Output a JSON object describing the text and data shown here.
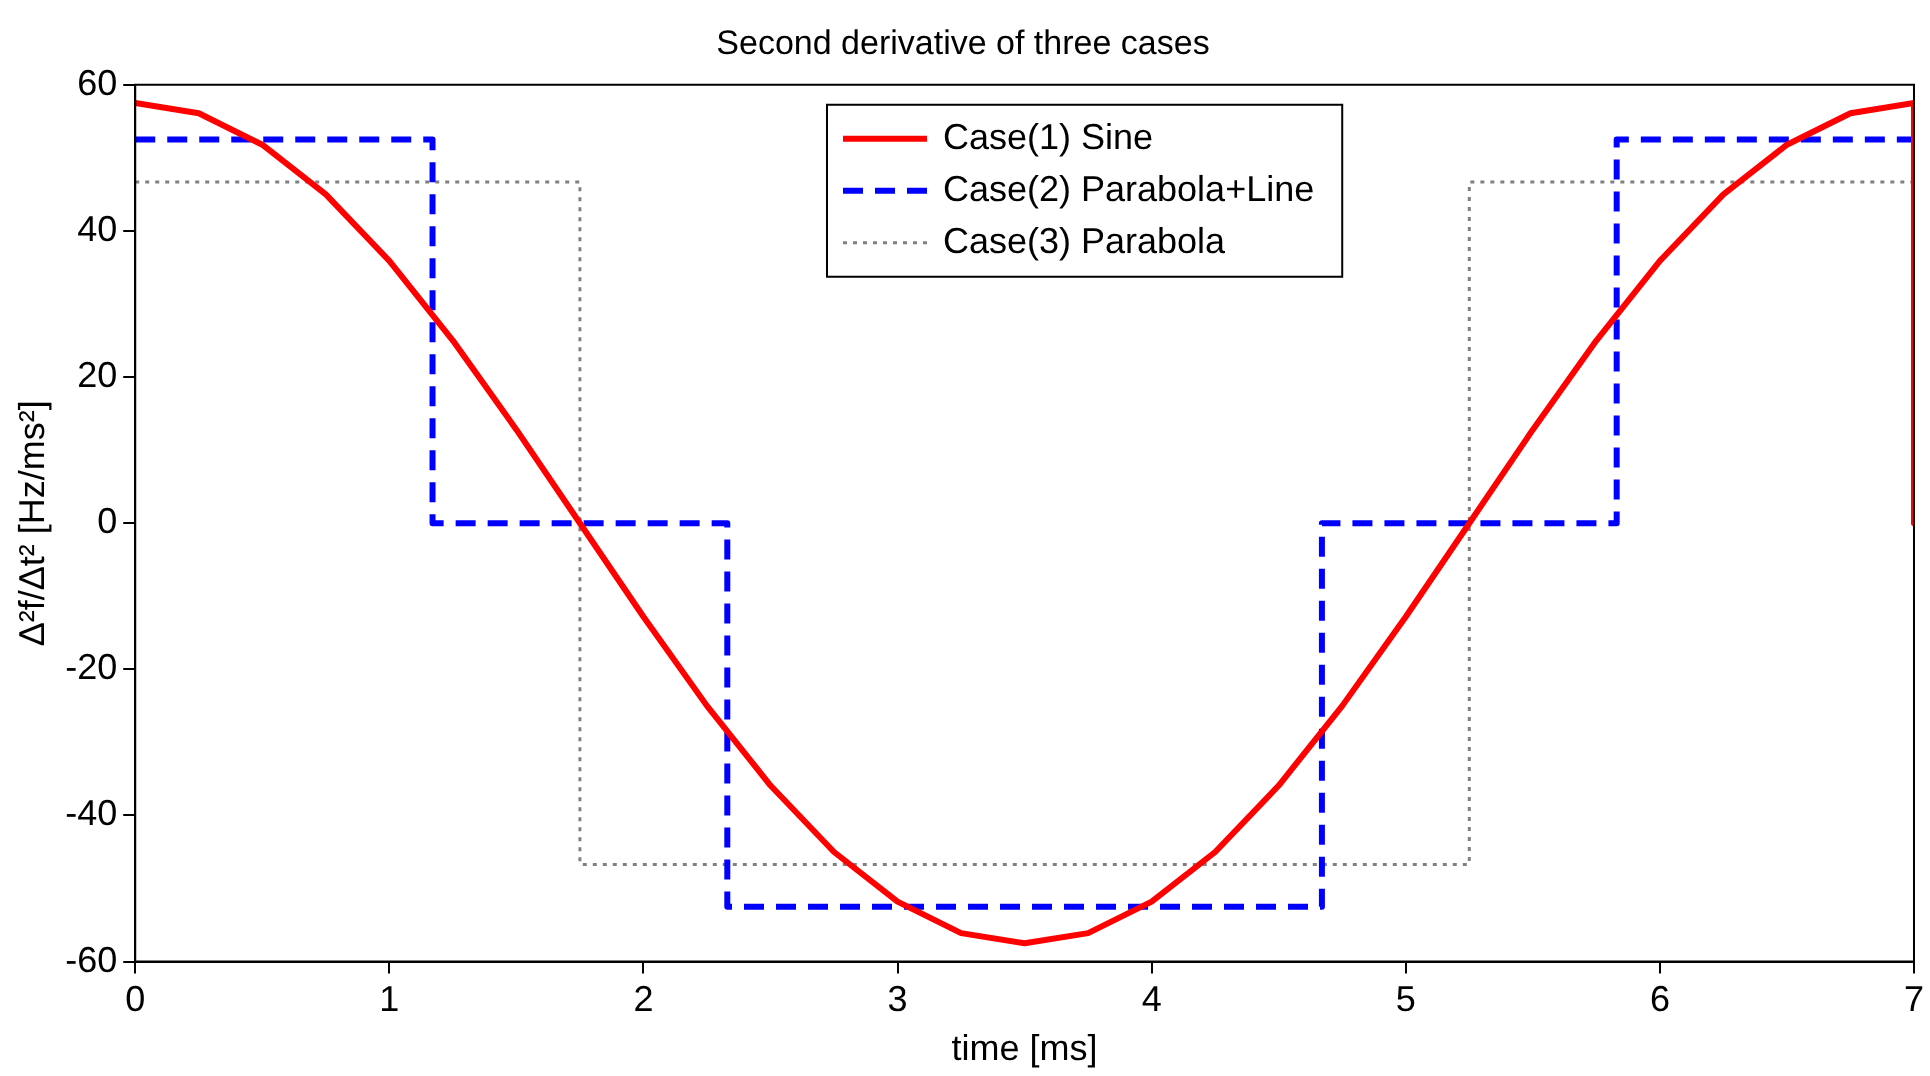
{
  "chart_data": {
    "type": "line",
    "title": "Second derivative of three cases",
    "xlabel": "time [ms]",
    "ylabel": "Δ²f/Δt² [Hz/ms²]",
    "series": [
      {
        "name": "Case(1) Sine",
        "color": "#ff0000",
        "line_style": "solid",
        "x": [
          0,
          0.25,
          0.5,
          0.75,
          1,
          1.25,
          1.5,
          1.75,
          2,
          2.25,
          2.5,
          2.75,
          3,
          3.25,
          3.5,
          3.75,
          4,
          4.25,
          4.5,
          4.75,
          5,
          5.25,
          5.5,
          5.75,
          6,
          6.25,
          6.5,
          6.75,
          7,
          7
        ],
        "values": [
          57.5,
          56.1,
          51.8,
          45,
          35.9,
          25,
          12.8,
          0,
          -12.8,
          -25,
          -35.9,
          -45,
          -51.8,
          -56.1,
          -57.5,
          -56.1,
          -51.8,
          -45,
          -35.9,
          -25,
          -12.8,
          0,
          12.8,
          25,
          35.9,
          45,
          51.8,
          56.1,
          57.5,
          0
        ]
      },
      {
        "name": "Case(2) Parabola+Line",
        "color": "#0000ff",
        "line_style": "dashed",
        "x": [
          0,
          1.17,
          1.17,
          2.33,
          2.33,
          4.67,
          4.67,
          5.83,
          5.83,
          7,
          7
        ],
        "values": [
          52.5,
          52.5,
          0,
          0,
          -52.5,
          -52.5,
          0,
          0,
          52.5,
          52.5,
          0
        ]
      },
      {
        "name": "Case(3) Parabola",
        "color": "#808080",
        "line_style": "dotted",
        "x": [
          0,
          1.75,
          1.75,
          5.25,
          5.25,
          7
        ],
        "values": [
          46.7,
          46.7,
          -46.7,
          -46.7,
          46.7,
          46.7
        ]
      }
    ],
    "xlim": [
      0,
      7
    ],
    "xticks": [
      0,
      1,
      2,
      3,
      4,
      5,
      6,
      7
    ],
    "ylim": [
      -60,
      60
    ],
    "yticks": [
      -60,
      -40,
      -20,
      0,
      20,
      40,
      60
    ],
    "grid": false,
    "legend": "top",
    "marker": "none"
  }
}
